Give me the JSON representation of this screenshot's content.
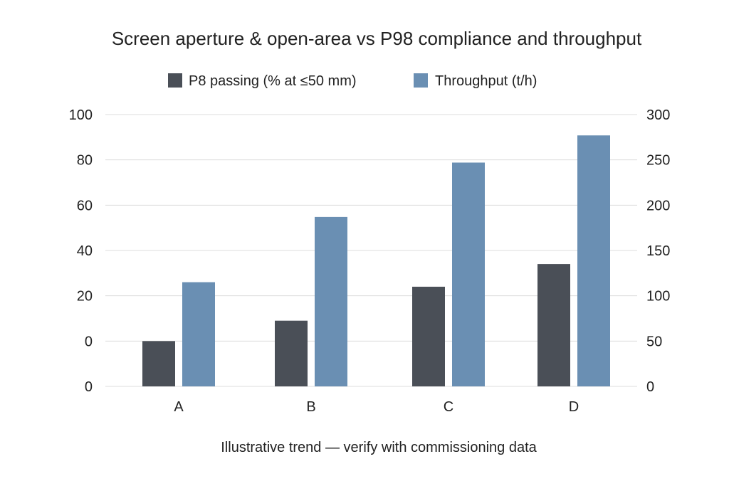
{
  "chart_data": {
    "type": "bar",
    "title": "Screen aperture & open-area vs P98 compliance and throughput",
    "subtitle": "",
    "xlabel": "",
    "ylabel_left": "",
    "ylabel_right": "",
    "categories": [
      "A",
      "B",
      "C",
      "D"
    ],
    "left_axis": {
      "tick_labels": [
        "100",
        "80",
        "60",
        "40",
        "20",
        "0",
        "0"
      ],
      "note": "tick labels printed top to bottom"
    },
    "right_axis": {
      "tick_labels": [
        "300",
        "250",
        "200",
        "150",
        "100",
        "50",
        "0"
      ],
      "ylim": [
        0,
        300
      ]
    },
    "series": [
      {
        "name": "P8 passing (% at ≤50 mm)",
        "axis": "left",
        "color": "#4a4f57",
        "values": [
          20,
          29,
          44,
          54
        ]
      },
      {
        "name": "Throughput (t/h)",
        "axis": "right",
        "color": "#6a8fb3",
        "values": [
          115,
          187,
          247,
          277
        ]
      }
    ],
    "grid": "horizontal",
    "legend_position": "top-center",
    "footnote": "Illustrative trend — verify with commissioning data"
  }
}
